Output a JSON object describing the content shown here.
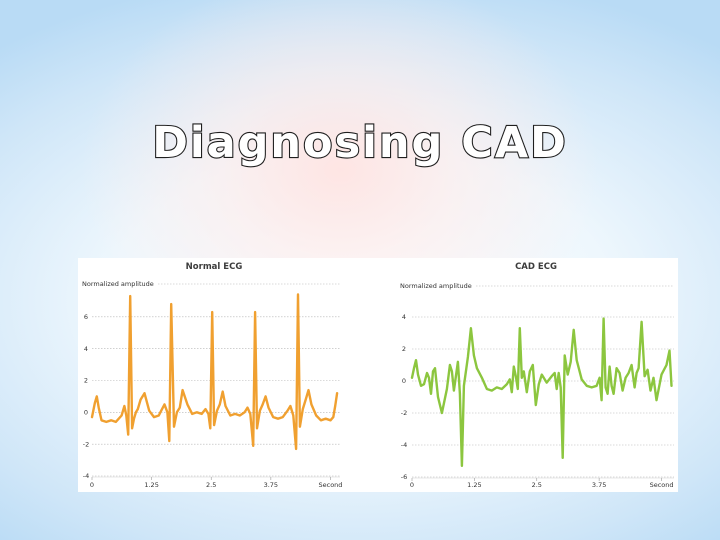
{
  "slide": {
    "title": "Diagnosing CAD"
  },
  "chart_data": [
    {
      "type": "line",
      "title": "Normal ECG",
      "ylabel": "Normalized amplitude",
      "xlabel": "Second",
      "xlim": [
        0,
        5.2
      ],
      "ylim": [
        -4,
        8
      ],
      "x_ticks": [
        {
          "value": 0,
          "label": "0"
        },
        {
          "value": 1.25,
          "label": "1.25"
        },
        {
          "value": 2.5,
          "label": "2.5"
        },
        {
          "value": 3.75,
          "label": "3.75"
        },
        {
          "value": 5,
          "label": "Second"
        }
      ],
      "y_ticks": [
        -4,
        -2,
        0,
        2,
        4,
        6
      ],
      "grid": "horizontal dotted",
      "color": "#f0a030",
      "series": [
        {
          "x": [
            0,
            0.06,
            0.1,
            0.14,
            0.2,
            0.3,
            0.4,
            0.5,
            0.62,
            0.68,
            0.72,
            0.76,
            0.8,
            0.84,
            0.88,
            0.92,
            0.96,
            1.02,
            1.1,
            1.2,
            1.3,
            1.4,
            1.45,
            1.52,
            1.58,
            1.62,
            1.66,
            1.72,
            1.78,
            1.84,
            1.9,
            2.0,
            2.1,
            2.2,
            2.3,
            2.38,
            2.44,
            2.48,
            2.52,
            2.56,
            2.62,
            2.68,
            2.74,
            2.8,
            2.9,
            3.0,
            3.1,
            3.2,
            3.26,
            3.32,
            3.38,
            3.42,
            3.46,
            3.52,
            3.58,
            3.64,
            3.7,
            3.8,
            3.9,
            4.0,
            4.1,
            4.16,
            4.22,
            4.28,
            4.32,
            4.36,
            4.42,
            4.48,
            4.54,
            4.6,
            4.7,
            4.8,
            4.9,
            5.0,
            5.06,
            5.1,
            5.14
          ],
          "y": [
            -0.3,
            0.6,
            1.0,
            0.3,
            -0.5,
            -0.6,
            -0.5,
            -0.6,
            -0.2,
            0.4,
            -0.2,
            -1.4,
            7.3,
            -1.0,
            -0.4,
            0.0,
            0.2,
            0.8,
            1.2,
            0.1,
            -0.3,
            -0.2,
            0.1,
            0.5,
            0.0,
            -1.8,
            6.8,
            -0.9,
            0.0,
            0.3,
            1.4,
            0.5,
            -0.1,
            0.0,
            -0.1,
            0.2,
            -0.1,
            -1.0,
            6.3,
            -0.8,
            0.1,
            0.5,
            1.3,
            0.4,
            -0.2,
            -0.1,
            -0.2,
            0.0,
            0.3,
            -0.1,
            -2.1,
            6.3,
            -1.0,
            0.1,
            0.5,
            1.0,
            0.3,
            -0.3,
            -0.4,
            -0.3,
            0.1,
            0.4,
            -0.2,
            -2.3,
            7.4,
            -0.9,
            0.2,
            0.8,
            1.4,
            0.5,
            -0.2,
            -0.5,
            -0.4,
            -0.5,
            -0.3,
            0.4,
            1.2
          ]
        }
      ]
    },
    {
      "type": "line",
      "title": "CAD ECG",
      "ylabel": "Normalized amplitude",
      "xlabel": "Second",
      "xlim": [
        0,
        5.25
      ],
      "ylim": [
        -6,
        4
      ],
      "x_ticks": [
        {
          "value": 0,
          "label": "0"
        },
        {
          "value": 1.25,
          "label": "1.25"
        },
        {
          "value": 2.5,
          "label": "2.5"
        },
        {
          "value": 3.75,
          "label": "3.75"
        },
        {
          "value": 5,
          "label": "Second"
        }
      ],
      "y_ticks": [
        -6,
        -4,
        -2,
        0,
        2,
        4
      ],
      "grid": "horizontal dotted",
      "color": "#8cc63f",
      "series": [
        {
          "x": [
            0,
            0.04,
            0.08,
            0.12,
            0.18,
            0.24,
            0.3,
            0.34,
            0.38,
            0.42,
            0.46,
            0.52,
            0.6,
            0.7,
            0.76,
            0.8,
            0.84,
            0.88,
            0.92,
            0.96,
            1.0,
            1.04,
            1.08,
            1.12,
            1.18,
            1.24,
            1.3,
            1.4,
            1.5,
            1.6,
            1.7,
            1.8,
            1.9,
            1.96,
            2.0,
            2.04,
            2.08,
            2.12,
            2.16,
            2.2,
            2.24,
            2.3,
            2.36,
            2.42,
            2.48,
            2.54,
            2.6,
            2.7,
            2.8,
            2.86,
            2.9,
            2.94,
            2.98,
            3.02,
            3.06,
            3.12,
            3.18,
            3.24,
            3.3,
            3.4,
            3.5,
            3.6,
            3.7,
            3.76,
            3.8,
            3.84,
            3.88,
            3.92,
            3.96,
            4.0,
            4.04,
            4.1,
            4.16,
            4.22,
            4.28,
            4.34,
            4.4,
            4.46,
            4.5,
            4.54,
            4.6,
            4.66,
            4.72,
            4.78,
            4.84,
            4.9,
            5.0,
            5.1,
            5.16,
            5.2
          ],
          "y": [
            0.2,
            0.8,
            1.3,
            0.4,
            -0.3,
            -0.2,
            0.5,
            0.2,
            -0.8,
            0.6,
            0.8,
            -1.0,
            -2.0,
            -0.5,
            1.0,
            0.6,
            -0.6,
            0.3,
            1.2,
            -0.8,
            -5.3,
            -0.3,
            0.6,
            1.5,
            3.3,
            1.6,
            0.8,
            0.2,
            -0.5,
            -0.6,
            -0.4,
            -0.5,
            -0.2,
            0.1,
            -0.7,
            0.9,
            0.3,
            -0.5,
            3.3,
            0.2,
            0.6,
            -0.7,
            0.6,
            1.0,
            -1.5,
            -0.2,
            0.4,
            -0.1,
            0.3,
            0.5,
            -0.5,
            0.5,
            -0.4,
            -4.8,
            1.6,
            0.4,
            1.2,
            3.2,
            1.3,
            0.1,
            -0.3,
            -0.4,
            -0.3,
            0.2,
            -1.2,
            3.9,
            -0.4,
            -0.8,
            0.9,
            -0.3,
            -0.8,
            0.8,
            0.5,
            -0.6,
            0.2,
            0.5,
            1.0,
            -0.4,
            0.5,
            0.8,
            3.7,
            0.3,
            0.7,
            -0.6,
            0.2,
            -1.2,
            0.4,
            1.0,
            1.9,
            -0.3
          ]
        }
      ]
    }
  ]
}
